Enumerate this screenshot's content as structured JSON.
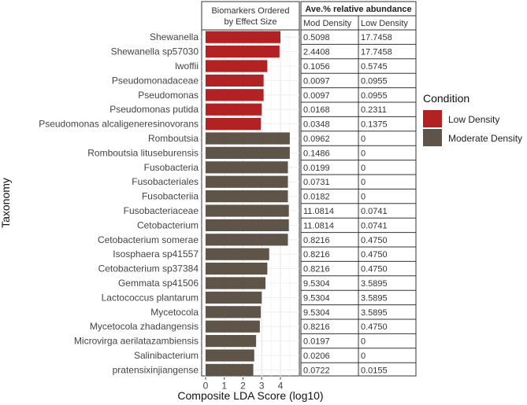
{
  "chart_data": {
    "type": "bar",
    "orientation": "horizontal",
    "panel_title_lines": [
      "Biomarkers Ordered",
      "by Effect Size"
    ],
    "xlabel": "Composite LDA Score (log10)",
    "ylabel": "Taxonomy",
    "xlim": [
      0,
      4.8
    ],
    "x_ticks": [
      "0",
      "1",
      "2",
      "3",
      "4"
    ],
    "grid": true,
    "categories": [
      "Shewanella",
      "Shewanella sp57030",
      "lwoffii",
      "Pseudomonadaceae",
      "Pseudomonas",
      "Pseudomonas putida",
      "Pseudomonas alcaligeneresinovorans",
      "Romboutsia",
      "Romboutsia lituseburensis",
      "Fusobacteria",
      "Fusobacteriales",
      "Fusobacteriia",
      "Fusobacteriaceae",
      "Cetobacterium",
      "Cetobacterium somerae",
      "Isosphaera sp41557",
      "Cetobacterium sp37384",
      "Gemmata sp41506",
      "Lactococcus plantarum",
      "Mycetocola",
      "Mycetocola zhadangensis",
      "Microvirga aerilatazambiensis",
      "Salinibacterium",
      "pratensixinjiangense"
    ],
    "values": [
      4.0,
      3.95,
      3.3,
      3.1,
      3.1,
      3.0,
      2.95,
      4.5,
      4.5,
      4.4,
      4.4,
      4.4,
      4.45,
      4.45,
      4.4,
      3.4,
      3.3,
      3.2,
      3.0,
      2.95,
      2.9,
      2.7,
      2.6,
      2.55
    ],
    "condition": [
      "Low Density",
      "Low Density",
      "Low Density",
      "Low Density",
      "Low Density",
      "Low Density",
      "Low Density",
      "Moderate Density",
      "Moderate Density",
      "Moderate Density",
      "Moderate Density",
      "Moderate Density",
      "Moderate Density",
      "Moderate Density",
      "Moderate Density",
      "Moderate Density",
      "Moderate Density",
      "Moderate Density",
      "Moderate Density",
      "Moderate Density",
      "Moderate Density",
      "Moderate Density",
      "Moderate Density",
      "Moderate Density"
    ],
    "legend": {
      "title": "Condition",
      "position": "right",
      "items": [
        {
          "label": "Low Density",
          "color": "#b22222"
        },
        {
          "label": "Moderate Density",
          "color": "#5f5448"
        }
      ]
    },
    "table": {
      "title": "Ave.% relative abundance",
      "columns": [
        "Mod Density",
        "Low Density"
      ],
      "rows": [
        [
          "0.5098",
          "17.7458"
        ],
        [
          "2.4408",
          "17.7458"
        ],
        [
          "0.1056",
          "0.5745"
        ],
        [
          "0.0097",
          "0.0955"
        ],
        [
          "0.0097",
          "0.0955"
        ],
        [
          "0.0168",
          "0.2311"
        ],
        [
          "0.0348",
          "0.1375"
        ],
        [
          "0.0962",
          "0"
        ],
        [
          "0.1486",
          "0"
        ],
        [
          "0.0199",
          "0"
        ],
        [
          "0.0731",
          "0"
        ],
        [
          "0.0182",
          "0"
        ],
        [
          "11.0814",
          "0.0741"
        ],
        [
          "11.0814",
          "0.0741"
        ],
        [
          "0.8216",
          "0.4750"
        ],
        [
          "0.8216",
          "0.4750"
        ],
        [
          "0.8216",
          "0.4750"
        ],
        [
          "9.5304",
          "3.5895"
        ],
        [
          "9.5304",
          "3.5895"
        ],
        [
          "9.5304",
          "3.5895"
        ],
        [
          "0.8216",
          "0.4750"
        ],
        [
          "0.0197",
          "0"
        ],
        [
          "0.0206",
          "0"
        ],
        [
          "0.0722",
          "0.0155"
        ]
      ]
    }
  }
}
